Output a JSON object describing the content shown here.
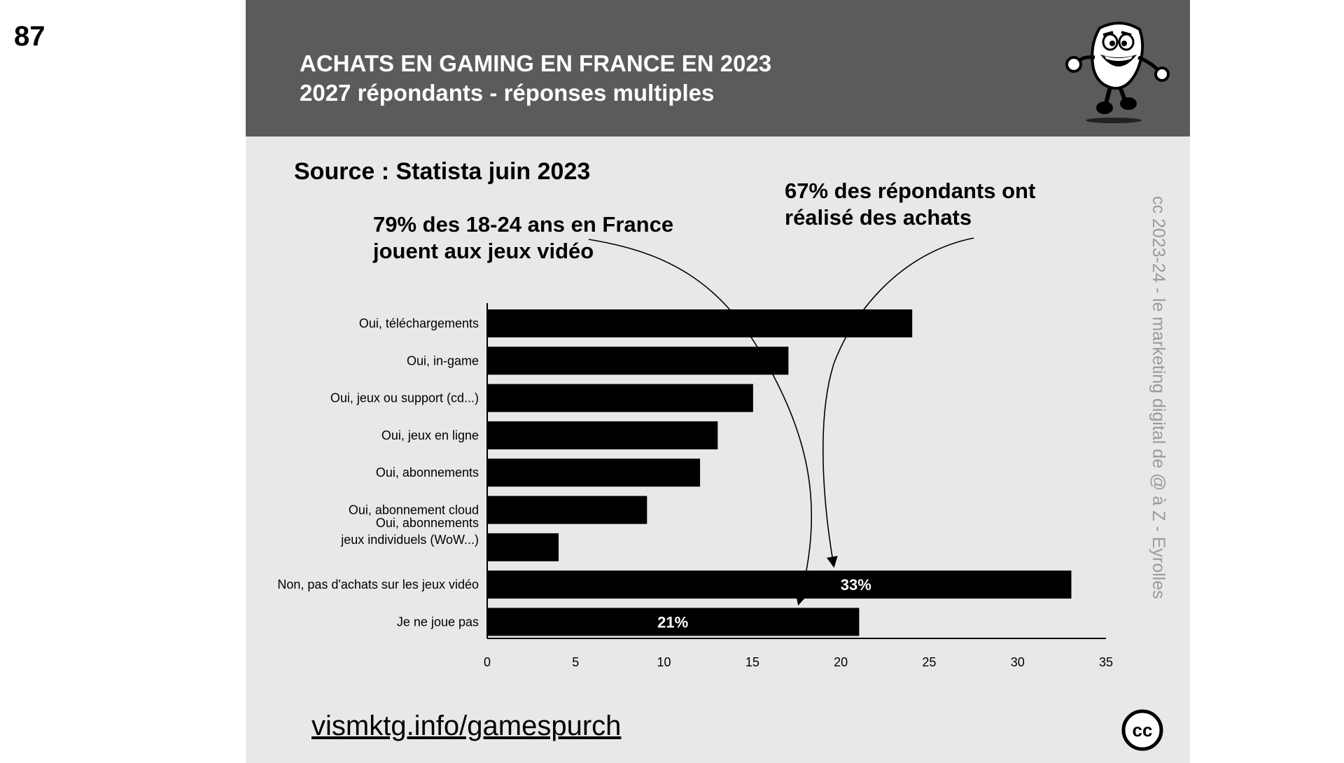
{
  "page_number": "87",
  "header": {
    "title": "ACHATS EN GAMING EN FRANCE EN 2023",
    "subtitle": "2027 répondants - réponses multiples"
  },
  "source": "Source : Statista juin 2023",
  "annotations": {
    "young_players_line1": "79% des 18-24 ans en France",
    "young_players_line2": "jouent aux jeux vidéo",
    "purchasers_line1": "67% des répondants ont",
    "purchasers_line2": "réalisé des achats"
  },
  "watermark": "cc 2023-24 - le marketing digital de @ à Z - Eyrolles",
  "footer": {
    "url": "vismktg.info/gamespurch",
    "cc_label": "cc"
  },
  "icons": {
    "mascot": "cartoon-mascot-icon",
    "license": "creative-commons-icon"
  },
  "colors": {
    "header_bg": "#5b5b5d",
    "slide_bg": "#e8e8e8",
    "bar": "#000000",
    "watermark": "#9a9a9a"
  },
  "chart_data": {
    "type": "bar",
    "orientation": "horizontal",
    "categories": [
      [
        "Oui, téléchargements"
      ],
      [
        "Oui, in-game"
      ],
      [
        "Oui, jeux ou support (cd...)"
      ],
      [
        "Oui, jeux en ligne"
      ],
      [
        "Oui, abonnements"
      ],
      [
        "Oui, abonnement cloud"
      ],
      [
        "Oui, abonnements ",
        "jeux individuels (WoW...)"
      ],
      [
        "Non, pas d'achats sur les jeux vidéo"
      ],
      [
        "Je ne joue pas"
      ]
    ],
    "values": [
      24,
      17,
      15,
      13,
      12,
      9,
      4,
      33,
      21
    ],
    "data_labels": [
      "",
      "",
      "",
      "",
      "",
      "",
      "",
      "33%",
      "21%"
    ],
    "xlim": [
      0,
      35
    ],
    "xticks": [
      0,
      5,
      10,
      15,
      20,
      25,
      30,
      35
    ],
    "grid": false
  }
}
